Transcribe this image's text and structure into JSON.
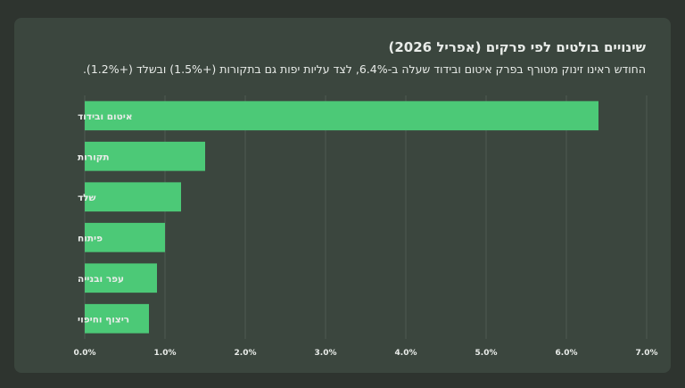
{
  "chart_data": {
    "type": "bar",
    "orientation": "horizontal",
    "title": "שינויים בולטים לפי פרקים (אפריל 2026)",
    "subtitle": "החודש ראינו זינוק מטורף בפרק איטום ובידוד שעלה ב-6.4%, לצד עליות יפות גם בתקורות (+1.5%) ובשלד (+1.2%).",
    "categories": [
      "איטום ובידוד",
      "תקורות",
      "שלד",
      "פיתוח",
      "עפר ובנייה",
      "ריצוף וחיפוי"
    ],
    "values": [
      6.4,
      1.5,
      1.2,
      1.0,
      0.9,
      0.8
    ],
    "xlim": [
      0,
      7
    ],
    "xticks": [
      "0.0%",
      "1.0%",
      "2.0%",
      "3.0%",
      "4.0%",
      "5.0%",
      "6.0%",
      "7.0%"
    ],
    "grid": true,
    "colors": {
      "bar": "#4cc977",
      "grid": "#4f5b52",
      "text": "#e9ece9"
    }
  }
}
